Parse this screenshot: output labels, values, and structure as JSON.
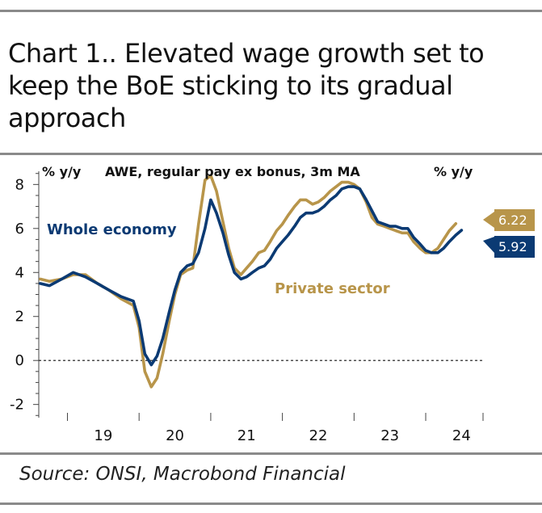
{
  "title": "Chart 1.. Elevated wage growth set to keep the BoE sticking to its gradual approach",
  "source": "Source: ONSI, Macrobond Financial",
  "colors": {
    "whole_economy": "#0b3a73",
    "private_sector": "#b8954a",
    "rule": "#8a8a8a"
  },
  "chart_data": {
    "type": "line",
    "title": "AWE, regular pay ex bonus, 3m MA",
    "ylabel_left": "% y/y",
    "ylabel_right": "% y/y",
    "ylim": [
      -2.6,
      8.6
    ],
    "yticks": [
      -2,
      0,
      2,
      4,
      6,
      8
    ],
    "xlim": [
      2018.6,
      2024.8
    ],
    "xtick_labels": [
      "19",
      "20",
      "21",
      "22",
      "23",
      "24"
    ],
    "series": [
      {
        "name": "Whole economy",
        "end_label": "5.92",
        "x": [
          2018.62,
          2018.75,
          2018.92,
          2019.08,
          2019.25,
          2019.42,
          2019.58,
          2019.75,
          2019.92,
          2020.0,
          2020.08,
          2020.17,
          2020.25,
          2020.33,
          2020.42,
          2020.5,
          2020.58,
          2020.67,
          2020.75,
          2020.83,
          2020.92,
          2021.0,
          2021.08,
          2021.17,
          2021.25,
          2021.33,
          2021.42,
          2021.5,
          2021.58,
          2021.67,
          2021.75,
          2021.83,
          2021.92,
          2022.0,
          2022.08,
          2022.17,
          2022.25,
          2022.33,
          2022.42,
          2022.5,
          2022.58,
          2022.67,
          2022.75,
          2022.83,
          2022.92,
          2023.0,
          2023.08,
          2023.17,
          2023.25,
          2023.33,
          2023.42,
          2023.5,
          2023.58,
          2023.67,
          2023.75,
          2023.83,
          2023.92,
          2024.0,
          2024.08,
          2024.17,
          2024.25,
          2024.33,
          2024.42,
          2024.5,
          2024.58
        ],
        "values": [
          3.5,
          3.4,
          3.7,
          4.0,
          3.8,
          3.5,
          3.2,
          2.9,
          2.7,
          1.8,
          0.3,
          -0.2,
          0.2,
          1.0,
          2.2,
          3.2,
          4.0,
          4.3,
          4.4,
          4.9,
          6.0,
          7.3,
          6.7,
          5.8,
          4.8,
          4.0,
          3.7,
          3.8,
          4.0,
          4.2,
          4.3,
          4.6,
          5.1,
          5.4,
          5.7,
          6.1,
          6.5,
          6.7,
          6.7,
          6.8,
          7.0,
          7.3,
          7.5,
          7.8,
          7.9,
          7.9,
          7.8,
          7.3,
          6.8,
          6.3,
          6.2,
          6.1,
          6.1,
          6.0,
          6.0,
          5.6,
          5.3,
          5.0,
          4.9,
          4.9,
          5.1,
          5.4,
          5.7,
          5.92,
          null
        ]
      },
      {
        "name": "Private sector",
        "end_label": "6.22",
        "x": [
          2018.62,
          2018.75,
          2018.92,
          2019.08,
          2019.25,
          2019.42,
          2019.58,
          2019.75,
          2019.92,
          2020.0,
          2020.08,
          2020.17,
          2020.25,
          2020.33,
          2020.42,
          2020.5,
          2020.58,
          2020.67,
          2020.75,
          2020.83,
          2020.92,
          2021.0,
          2021.08,
          2021.17,
          2021.25,
          2021.33,
          2021.42,
          2021.5,
          2021.58,
          2021.67,
          2021.75,
          2021.83,
          2021.92,
          2022.0,
          2022.08,
          2022.17,
          2022.25,
          2022.33,
          2022.42,
          2022.5,
          2022.58,
          2022.67,
          2022.75,
          2022.83,
          2022.92,
          2023.0,
          2023.08,
          2023.17,
          2023.25,
          2023.33,
          2023.42,
          2023.5,
          2023.58,
          2023.67,
          2023.75,
          2023.83,
          2023.92,
          2024.0,
          2024.08,
          2024.17,
          2024.25,
          2024.33,
          2024.42,
          2024.5,
          2024.58
        ],
        "values": [
          3.7,
          3.6,
          3.7,
          3.9,
          3.9,
          3.5,
          3.2,
          2.8,
          2.5,
          1.5,
          -0.5,
          -1.2,
          -0.8,
          0.3,
          1.8,
          3.0,
          3.9,
          4.1,
          4.2,
          6.2,
          8.2,
          8.4,
          7.7,
          6.3,
          5.1,
          4.2,
          3.9,
          4.2,
          4.5,
          4.9,
          5.0,
          5.4,
          5.9,
          6.2,
          6.6,
          7.0,
          7.3,
          7.3,
          7.1,
          7.2,
          7.4,
          7.7,
          7.9,
          8.1,
          8.1,
          8.0,
          7.8,
          7.2,
          6.5,
          6.2,
          6.1,
          6.0,
          5.9,
          5.8,
          5.8,
          5.4,
          5.1,
          4.9,
          4.9,
          5.1,
          5.5,
          5.9,
          6.22,
          null,
          null
        ]
      }
    ],
    "annotations": [
      "Whole economy",
      "Private sector"
    ],
    "grid": false,
    "zero_line": "dashed"
  }
}
